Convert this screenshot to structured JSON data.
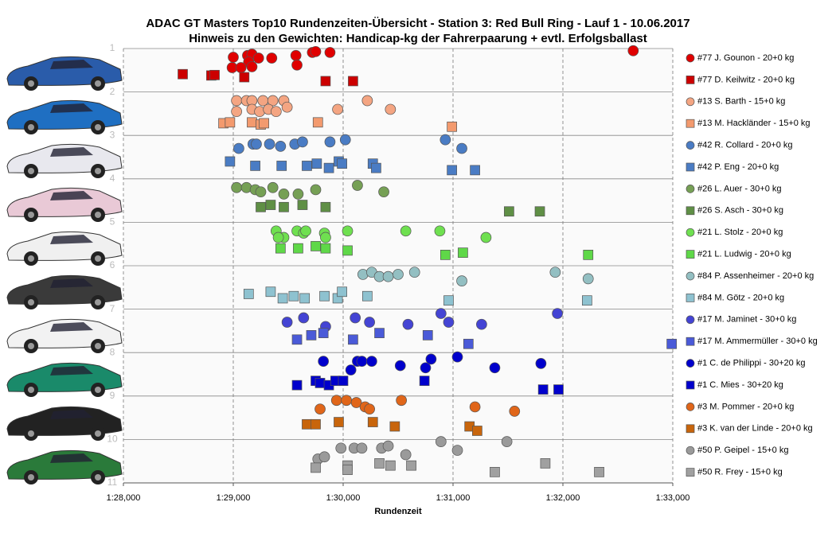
{
  "chart_data": {
    "type": "scatter",
    "title": "ADAC  GT Masters  Top10  Rundenzeiten-Übersicht  - Station 3: Red Bull Ring  - Lauf 1 - 10.06.2017",
    "subtitle": "Hinweis  zu den Gewichten:  Handicap-kg  der Fahrerpaarung  + evtl. Erfolgsballast",
    "x_label": "Rundenzeit",
    "xlim": [
      88,
      93
    ],
    "xticks": [
      {
        "value": 88,
        "label": "1:28,000"
      },
      {
        "value": 89,
        "label": "1:29,000"
      },
      {
        "value": 90,
        "label": "1:30,000"
      },
      {
        "value": 91,
        "label": "1:31,000"
      },
      {
        "value": 92,
        "label": "1:32,000"
      },
      {
        "value": 93,
        "label": "1:33,000"
      }
    ],
    "ylim": [
      11,
      1
    ],
    "yticks": [
      1,
      2,
      3,
      4,
      5,
      6,
      7,
      8,
      9,
      10,
      11
    ],
    "grid": true,
    "legend": "right",
    "series": [
      {
        "name": "#77 J. Gounon - 20+0 kg",
        "color": "#e00000",
        "marker": "circle",
        "x": [
          89.0,
          89.13,
          89.17,
          89.14,
          89.23,
          88.99,
          89.07,
          89.17,
          89.35,
          89.57,
          89.58,
          89.72,
          89.75,
          89.88,
          92.64
        ],
        "values": [
          1.2,
          1.16,
          1.13,
          1.31,
          1.22,
          1.44,
          1.44,
          1.42,
          1.22,
          1.16,
          1.38,
          1.09,
          1.07,
          1.09,
          1.05
        ]
      },
      {
        "name": "#77 D. Keilwitz - 20+0 kg",
        "color": "#cc0000",
        "marker": "square",
        "x": [
          88.54,
          88.8,
          88.83,
          89.1,
          89.84,
          90.09
        ],
        "values": [
          1.59,
          1.62,
          1.61,
          1.66,
          1.75,
          1.75
        ]
      },
      {
        "name": "#13 S. Barth - 15+0 kg",
        "color": "#f4a582",
        "marker": "circle",
        "x": [
          89.03,
          89.12,
          89.17,
          89.27,
          89.36,
          89.46,
          89.03,
          89.17,
          89.24,
          89.32,
          89.39,
          89.49,
          89.95,
          90.22,
          90.43
        ],
        "values": [
          2.2,
          2.2,
          2.2,
          2.2,
          2.2,
          2.2,
          2.45,
          2.4,
          2.45,
          2.4,
          2.45,
          2.35,
          2.4,
          2.2,
          2.4
        ]
      },
      {
        "name": "#13 M. Hackländer - 15+0 kg",
        "color": "#f39a6e",
        "marker": "square",
        "x": [
          88.91,
          88.97,
          89.17,
          89.25,
          89.28,
          89.77,
          90.99
        ],
        "values": [
          2.72,
          2.7,
          2.7,
          2.75,
          2.72,
          2.7,
          2.8
        ]
      },
      {
        "name": "#42 R. Collard - 20+0 kg",
        "color": "#4a7cc4",
        "marker": "circle",
        "x": [
          89.05,
          89.18,
          89.21,
          89.33,
          89.43,
          89.56,
          89.63,
          89.88,
          90.02,
          90.93,
          91.08
        ],
        "values": [
          3.3,
          3.2,
          3.2,
          3.2,
          3.25,
          3.2,
          3.15,
          3.15,
          3.1,
          3.1,
          3.3
        ]
      },
      {
        "name": "#42 P. Eng - 20+0 kg",
        "color": "#4a7cc4",
        "marker": "square",
        "x": [
          88.97,
          89.2,
          89.44,
          89.67,
          89.76,
          89.87,
          89.96,
          89.99,
          90.27,
          90.3,
          90.99,
          91.2
        ],
        "values": [
          3.6,
          3.7,
          3.7,
          3.7,
          3.65,
          3.75,
          3.6,
          3.65,
          3.65,
          3.75,
          3.8,
          3.8
        ]
      },
      {
        "name": "#26 L. Auer - 30+0 kg",
        "color": "#76a055",
        "marker": "circle",
        "x": [
          89.03,
          89.12,
          89.2,
          89.25,
          89.36,
          89.46,
          89.59,
          89.75,
          90.13,
          90.37
        ],
        "values": [
          4.2,
          4.2,
          4.25,
          4.3,
          4.2,
          4.35,
          4.35,
          4.25,
          4.15,
          4.3
        ]
      },
      {
        "name": "#26 S. Asch - 30+0 kg",
        "color": "#5f8f45",
        "marker": "square",
        "x": [
          89.25,
          89.34,
          89.46,
          89.63,
          89.84,
          91.51,
          91.79
        ],
        "values": [
          4.65,
          4.6,
          4.65,
          4.6,
          4.65,
          4.75,
          4.75
        ]
      },
      {
        "name": "#21 L. Stolz - 20+0 kg",
        "color": "#6fe050",
        "marker": "circle",
        "x": [
          89.39,
          89.46,
          89.58,
          89.64,
          89.41,
          89.66,
          89.83,
          90.04,
          89.84,
          90.57,
          90.88,
          91.3
        ],
        "values": [
          5.2,
          5.35,
          5.2,
          5.25,
          5.35,
          5.2,
          5.25,
          5.2,
          5.35,
          5.2,
          5.2,
          5.35
        ]
      },
      {
        "name": "#21 L. Ludwig - 20+0 kg",
        "color": "#5fd848",
        "marker": "square",
        "x": [
          89.43,
          89.59,
          89.75,
          89.84,
          90.04,
          90.93,
          91.09,
          92.23
        ],
        "values": [
          5.6,
          5.6,
          5.55,
          5.6,
          5.65,
          5.75,
          5.7,
          5.75
        ]
      },
      {
        "name": "#84 P. Assenheimer - 20+0 kg",
        "color": "#93bfc2",
        "marker": "circle",
        "x": [
          90.18,
          90.26,
          90.33,
          90.41,
          90.65,
          90.5,
          91.08,
          91.93,
          92.23
        ],
        "values": [
          6.2,
          6.15,
          6.25,
          6.25,
          6.15,
          6.2,
          6.35,
          6.15,
          6.3
        ]
      },
      {
        "name": "#84 M. Götz - 20+0 kg",
        "color": "#8ec2d0",
        "marker": "square",
        "x": [
          89.14,
          89.34,
          89.45,
          89.55,
          89.65,
          89.83,
          89.95,
          89.99,
          90.22,
          90.96,
          92.22
        ],
        "values": [
          6.65,
          6.6,
          6.75,
          6.7,
          6.75,
          6.7,
          6.75,
          6.6,
          6.7,
          6.8,
          6.8
        ]
      },
      {
        "name": "#17 M. Jaminet - 30+0 kg",
        "color": "#4444d4",
        "marker": "circle",
        "x": [
          89.49,
          89.64,
          89.84,
          90.11,
          90.24,
          90.59,
          90.89,
          90.96,
          91.26,
          91.95
        ],
        "values": [
          7.3,
          7.2,
          7.4,
          7.2,
          7.3,
          7.35,
          7.1,
          7.3,
          7.35,
          7.1
        ]
      },
      {
        "name": "#17 M. Ammermüller - 30+0 kg",
        "color": "#4a5ad8",
        "marker": "square",
        "x": [
          89.58,
          89.71,
          89.82,
          90.09,
          90.33,
          90.77,
          91.14,
          92.99
        ],
        "values": [
          7.7,
          7.6,
          7.55,
          7.7,
          7.55,
          7.6,
          7.8,
          7.8
        ]
      },
      {
        "name": "#1 C. de Philippi - 30+20 kg",
        "color": "#0000cc",
        "marker": "circle",
        "x": [
          89.82,
          90.07,
          90.13,
          90.17,
          90.26,
          90.52,
          90.75,
          90.8,
          91.04,
          91.38,
          91.8
        ],
        "values": [
          8.2,
          8.4,
          8.2,
          8.2,
          8.2,
          8.3,
          8.35,
          8.15,
          8.1,
          8.35,
          8.25
        ]
      },
      {
        "name": "#1 C. Mies - 30+20 kg",
        "color": "#0000cc",
        "marker": "square",
        "x": [
          89.58,
          89.75,
          89.79,
          89.87,
          89.93,
          90.0,
          90.74,
          91.82,
          91.96
        ],
        "values": [
          8.75,
          8.65,
          8.7,
          8.75,
          8.65,
          8.65,
          8.65,
          8.85,
          8.85
        ]
      },
      {
        "name": "#3 M. Pommer - 20+0 kg",
        "color": "#e0661a",
        "marker": "circle",
        "x": [
          89.94,
          90.03,
          89.79,
          90.12,
          90.2,
          90.24,
          90.53,
          91.2,
          91.56
        ],
        "values": [
          9.1,
          9.1,
          9.3,
          9.15,
          9.25,
          9.3,
          9.1,
          9.25,
          9.35
        ]
      },
      {
        "name": "#3 K. van der Linde - 20+0 kg",
        "color": "#c8650c",
        "marker": "square",
        "x": [
          89.67,
          89.75,
          89.96,
          90.27,
          90.47,
          91.15,
          91.22
        ],
        "values": [
          9.65,
          9.65,
          9.6,
          9.6,
          9.7,
          9.7,
          9.8
        ]
      },
      {
        "name": "#50 P. Geipel - 15+0 kg",
        "color": "#9a9a9a",
        "marker": "circle",
        "x": [
          89.77,
          89.83,
          89.98,
          90.1,
          90.17,
          90.35,
          90.41,
          90.57,
          90.89,
          91.04,
          91.49
        ],
        "values": [
          10.45,
          10.4,
          10.2,
          10.2,
          10.2,
          10.2,
          10.15,
          10.35,
          10.05,
          10.25,
          10.05
        ]
      },
      {
        "name": "#50 R. Frey - 15+0 kg",
        "color": "#a0a0a0",
        "marker": "square",
        "x": [
          89.75,
          90.04,
          90.04,
          90.33,
          90.43,
          90.62,
          91.38,
          91.84,
          92.33
        ],
        "values": [
          10.65,
          10.6,
          10.7,
          10.55,
          10.6,
          10.6,
          10.75,
          10.55,
          10.75
        ]
      }
    ]
  }
}
